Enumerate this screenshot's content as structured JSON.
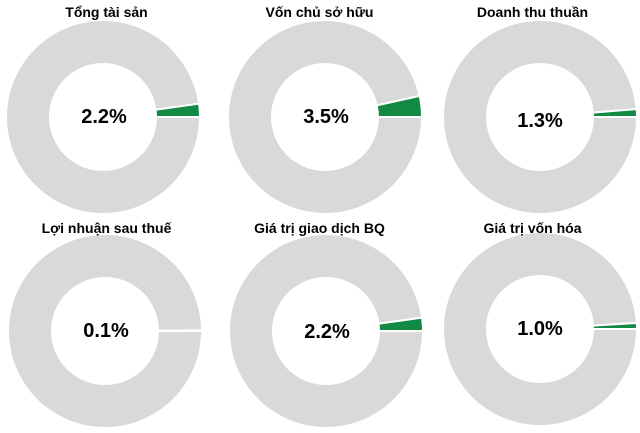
{
  "chart_data": [
    {
      "type": "pie",
      "title": "Tổng tài sản",
      "categories": [
        "",
        ""
      ],
      "values": [
        2.2,
        97.8
      ],
      "value_label": "2.2%",
      "colors": {
        "highlight": "#138A43",
        "rest": "#D9D9D9"
      }
    },
    {
      "type": "pie",
      "title": "Vốn chủ sở hữu",
      "categories": [
        "",
        ""
      ],
      "values": [
        3.5,
        96.5
      ],
      "value_label": "3.5%",
      "colors": {
        "highlight": "#138A43",
        "rest": "#D9D9D9"
      }
    },
    {
      "type": "pie",
      "title": "Doanh thu thuần",
      "categories": [
        "",
        ""
      ],
      "values": [
        1.3,
        98.7
      ],
      "value_label": "1.3%",
      "colors": {
        "highlight": "#138A43",
        "rest": "#D9D9D9"
      }
    },
    {
      "type": "pie",
      "title": "Lợi nhuận sau thuế",
      "categories": [
        "",
        ""
      ],
      "values": [
        0.1,
        99.9
      ],
      "value_label": "0.1%",
      "colors": {
        "highlight": "#138A43",
        "rest": "#D9D9D9"
      }
    },
    {
      "type": "pie",
      "title": "Giá trị giao dịch BQ",
      "categories": [
        "",
        ""
      ],
      "values": [
        2.2,
        97.8
      ],
      "value_label": "2.2%",
      "colors": {
        "highlight": "#138A43",
        "rest": "#D9D9D9"
      }
    },
    {
      "type": "pie",
      "title": "Giá trị vốn hóa",
      "categories": [
        "",
        ""
      ],
      "values": [
        1.0,
        99.0
      ],
      "value_label": "1.0%",
      "colors": {
        "highlight": "#138A43",
        "rest": "#D9D9D9"
      }
    }
  ]
}
